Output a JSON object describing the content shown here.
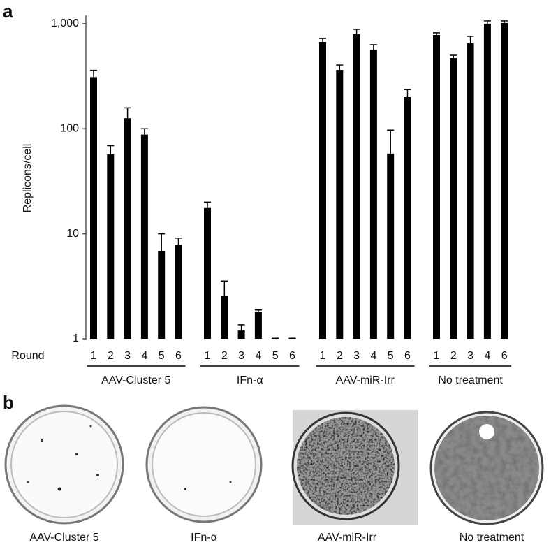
{
  "chart_data": {
    "type": "bar",
    "panel_label": "a",
    "ylabel": "Replicons/cell",
    "xlabel": "Round",
    "log_scale": true,
    "color": "#000000",
    "ylim": [
      1,
      1200
    ],
    "yticks": [
      1,
      10,
      100,
      {
        "value": 1000,
        "label": "1,000"
      }
    ],
    "groups": [
      {
        "name": "AAV-Cluster 5",
        "rounds": [
          "1",
          "2",
          "3",
          "4",
          "5",
          "6"
        ],
        "values": [
          310,
          57,
          126,
          88,
          6.8,
          7.9
        ],
        "errors": [
          50,
          12,
          32,
          12,
          3.2,
          1.2
        ]
      },
      {
        "name": "IFn-α",
        "rounds": [
          "1",
          "2",
          "3",
          "4",
          "5",
          "6"
        ],
        "values": [
          17.6,
          2.55,
          1.2,
          1.8,
          1,
          1
        ],
        "errors": [
          2.4,
          1.0,
          0.16,
          0.08,
          null,
          null
        ]
      },
      {
        "name": "AAV-miR-Irr",
        "rounds": [
          "1",
          "2",
          "3",
          "4",
          "5",
          "6"
        ],
        "values": [
          671,
          363,
          794,
          567,
          58,
          200
        ],
        "errors": [
          53,
          41,
          90,
          64,
          39,
          36
        ]
      },
      {
        "name": "No treatment",
        "rounds": [
          "1",
          "2",
          "3",
          "4",
          "6"
        ],
        "values": [
          782,
          471,
          650,
          1000,
          1016
        ],
        "errors": [
          37,
          30,
          109,
          63,
          47
        ]
      }
    ]
  },
  "panel_b": {
    "label": "b",
    "plates": [
      "AAV-Cluster 5",
      "IFn-α",
      "AAV-miR-Irr",
      "No treatment"
    ]
  }
}
